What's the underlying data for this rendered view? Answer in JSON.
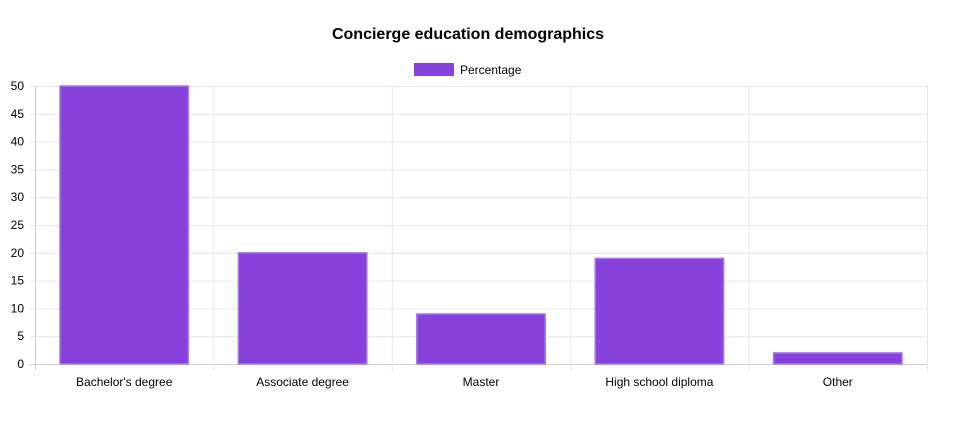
{
  "chart_data": {
    "type": "bar",
    "title": "Concierge education demographics",
    "categories": [
      "Bachelor's degree",
      "Associate degree",
      "Master",
      "High school diploma",
      "Other"
    ],
    "series": [
      {
        "name": "Percentage",
        "values": [
          50,
          20,
          9,
          19,
          2
        ],
        "color": "#8842dc"
      }
    ],
    "ylim": [
      0,
      50
    ],
    "y_ticks": [
      "0",
      "5",
      "10",
      "15",
      "20",
      "25",
      "30",
      "35",
      "40",
      "45",
      "50"
    ],
    "grid": true,
    "legend_position": "top"
  }
}
